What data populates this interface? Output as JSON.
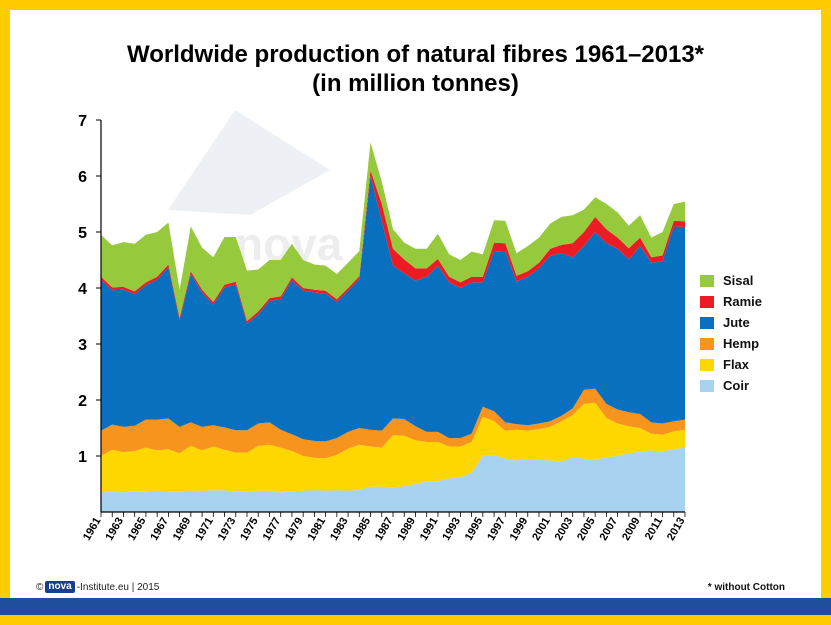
{
  "title": {
    "line1": "Worldwide production of natural fibres 1961–2013*",
    "line2": "(in million tonnes)"
  },
  "footer": {
    "copyright": "©",
    "brand": "nova",
    "brand_rest": "-Institute.eu | 2015",
    "note": "* without Cotton"
  },
  "watermark": "nova",
  "chart_data": {
    "type": "area",
    "stacked": true,
    "title": "Worldwide production of natural fibres 1961–2013* (in million tonnes)",
    "xlabel": "",
    "ylabel": "",
    "ylim": [
      0,
      7
    ],
    "yticks": [
      1,
      2,
      3,
      4,
      5,
      6,
      7
    ],
    "grid": false,
    "legend_position": "right",
    "x": [
      1961,
      1962,
      1963,
      1964,
      1965,
      1966,
      1967,
      1968,
      1969,
      1970,
      1971,
      1972,
      1973,
      1974,
      1975,
      1976,
      1977,
      1978,
      1979,
      1980,
      1981,
      1982,
      1983,
      1984,
      1985,
      1986,
      1987,
      1988,
      1989,
      1990,
      1991,
      1992,
      1993,
      1994,
      1995,
      1996,
      1997,
      1998,
      1999,
      2000,
      2001,
      2002,
      2003,
      2004,
      2005,
      2006,
      2007,
      2008,
      2009,
      2010,
      2011,
      2012,
      2013
    ],
    "xtick_labels": [
      "1961",
      "1963",
      "1965",
      "1967",
      "1969",
      "1971",
      "1973",
      "1975",
      "1977",
      "1979",
      "1981",
      "1983",
      "1985",
      "1987",
      "1989",
      "1991",
      "1993",
      "1995",
      "1997",
      "1999",
      "2001",
      "2003",
      "2005",
      "2007",
      "2009",
      "2011",
      "2013"
    ],
    "series": [
      {
        "name": "Coir",
        "color": "#a7d3f0",
        "values": [
          0.35,
          0.36,
          0.35,
          0.37,
          0.37,
          0.38,
          0.37,
          0.37,
          0.38,
          0.38,
          0.39,
          0.39,
          0.36,
          0.36,
          0.38,
          0.38,
          0.35,
          0.37,
          0.38,
          0.39,
          0.38,
          0.39,
          0.38,
          0.4,
          0.45,
          0.45,
          0.44,
          0.46,
          0.5,
          0.55,
          0.55,
          0.6,
          0.62,
          0.7,
          1.0,
          1.02,
          0.95,
          0.92,
          0.95,
          0.93,
          0.92,
          0.9,
          0.98,
          0.95,
          0.93,
          0.98,
          1.0,
          1.05,
          1.08,
          1.1,
          1.08,
          1.12,
          1.15
        ]
      },
      {
        "name": "Flax",
        "color": "#ffd700",
        "values": [
          0.65,
          0.75,
          0.72,
          0.72,
          0.78,
          0.72,
          0.75,
          0.68,
          0.8,
          0.72,
          0.78,
          0.72,
          0.7,
          0.7,
          0.8,
          0.82,
          0.8,
          0.72,
          0.62,
          0.58,
          0.58,
          0.63,
          0.75,
          0.8,
          0.72,
          0.7,
          0.93,
          0.9,
          0.78,
          0.7,
          0.7,
          0.57,
          0.55,
          0.55,
          0.7,
          0.6,
          0.5,
          0.55,
          0.5,
          0.55,
          0.6,
          0.72,
          0.75,
          0.98,
          1.02,
          0.7,
          0.58,
          0.48,
          0.42,
          0.3,
          0.3,
          0.32,
          0.32
        ]
      },
      {
        "name": "Hemp",
        "color": "#f7941d",
        "values": [
          0.45,
          0.45,
          0.45,
          0.45,
          0.5,
          0.55,
          0.55,
          0.47,
          0.42,
          0.42,
          0.38,
          0.4,
          0.4,
          0.4,
          0.4,
          0.4,
          0.32,
          0.3,
          0.3,
          0.3,
          0.3,
          0.3,
          0.3,
          0.3,
          0.3,
          0.3,
          0.3,
          0.3,
          0.25,
          0.18,
          0.18,
          0.15,
          0.15,
          0.15,
          0.18,
          0.18,
          0.15,
          0.1,
          0.1,
          0.1,
          0.1,
          0.1,
          0.12,
          0.25,
          0.25,
          0.25,
          0.25,
          0.25,
          0.25,
          0.2,
          0.2,
          0.18,
          0.18
        ]
      },
      {
        "name": "Jute",
        "color": "#0870bf",
        "values": [
          2.7,
          2.4,
          2.45,
          2.35,
          2.4,
          2.5,
          2.7,
          1.9,
          2.65,
          2.4,
          2.15,
          2.5,
          2.6,
          1.9,
          1.95,
          2.17,
          2.33,
          2.75,
          2.65,
          2.65,
          2.64,
          2.43,
          2.52,
          2.66,
          4.53,
          3.75,
          2.73,
          2.6,
          2.6,
          2.77,
          2.97,
          2.78,
          2.68,
          2.7,
          2.22,
          2.86,
          3.05,
          2.55,
          2.65,
          2.77,
          2.96,
          2.9,
          2.7,
          2.57,
          2.8,
          2.87,
          2.87,
          2.73,
          3.0,
          2.85,
          2.9,
          3.48,
          3.44
        ]
      },
      {
        "name": "Ramie",
        "color": "#ed1c24",
        "values": [
          0.05,
          0.05,
          0.05,
          0.05,
          0.05,
          0.05,
          0.05,
          0.05,
          0.05,
          0.05,
          0.05,
          0.05,
          0.05,
          0.05,
          0.05,
          0.05,
          0.05,
          0.05,
          0.05,
          0.05,
          0.05,
          0.05,
          0.05,
          0.05,
          0.1,
          0.3,
          0.3,
          0.25,
          0.22,
          0.15,
          0.12,
          0.1,
          0.1,
          0.1,
          0.1,
          0.15,
          0.15,
          0.1,
          0.1,
          0.1,
          0.12,
          0.15,
          0.25,
          0.25,
          0.27,
          0.25,
          0.2,
          0.2,
          0.15,
          0.1,
          0.1,
          0.1,
          0.1
        ]
      },
      {
        "name": "Sisal",
        "color": "#97c93c",
        "values": [
          0.75,
          0.75,
          0.8,
          0.85,
          0.85,
          0.8,
          0.75,
          0.5,
          0.8,
          0.75,
          0.8,
          0.85,
          0.8,
          0.9,
          0.75,
          0.68,
          0.65,
          0.6,
          0.5,
          0.45,
          0.45,
          0.45,
          0.45,
          0.45,
          0.5,
          0.4,
          0.35,
          0.3,
          0.35,
          0.35,
          0.45,
          0.4,
          0.4,
          0.45,
          0.4,
          0.4,
          0.4,
          0.4,
          0.45,
          0.45,
          0.45,
          0.5,
          0.5,
          0.4,
          0.35,
          0.45,
          0.45,
          0.4,
          0.4,
          0.35,
          0.42,
          0.3,
          0.35
        ]
      }
    ]
  }
}
